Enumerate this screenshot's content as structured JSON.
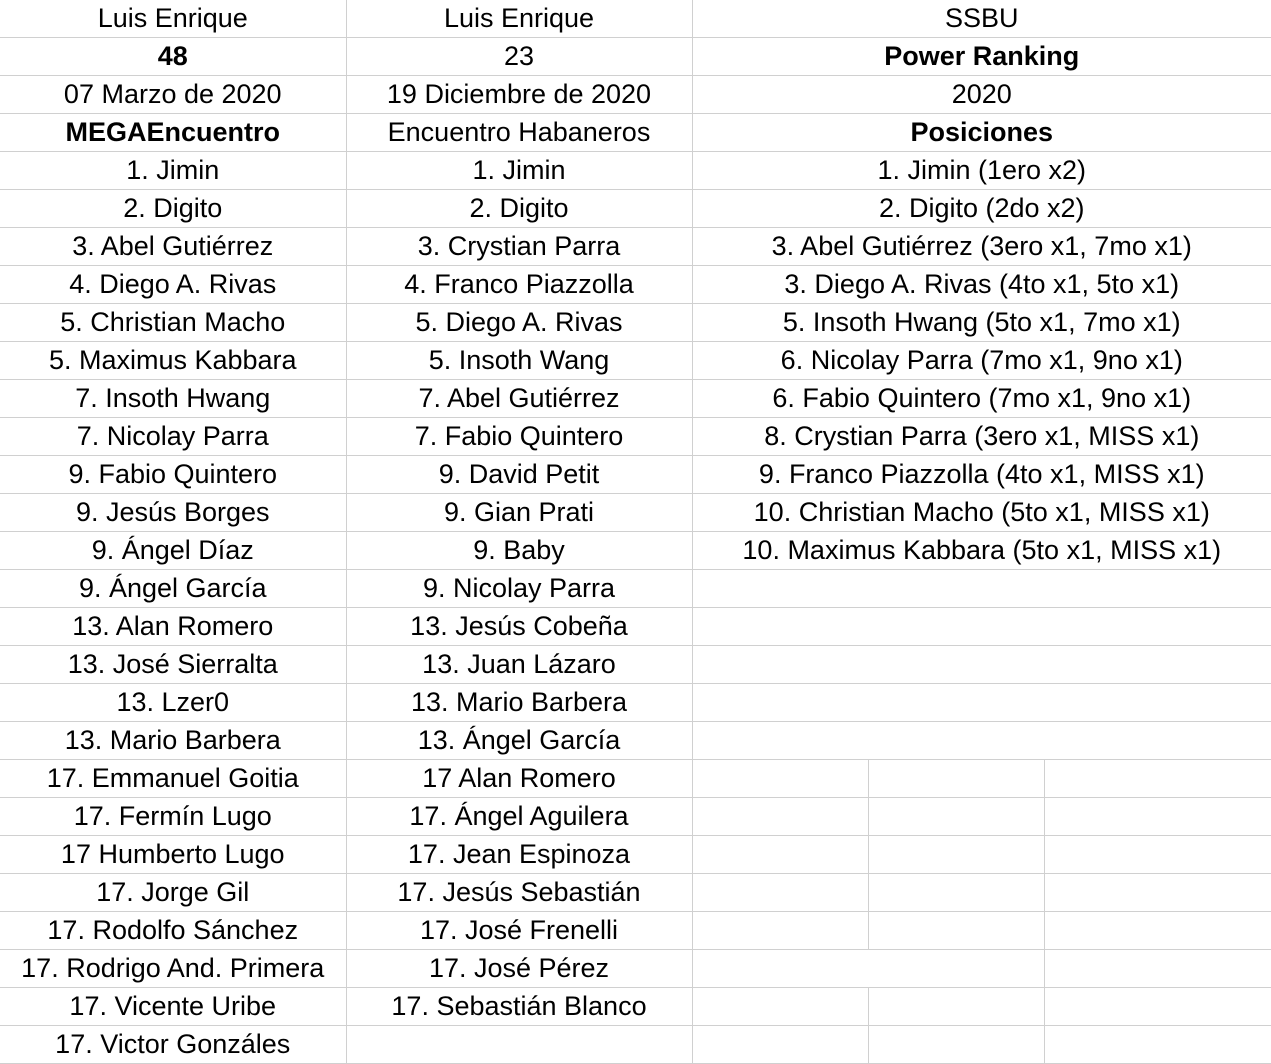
{
  "col1": {
    "header": [
      "Luis Enrique",
      "48",
      "07 Marzo de 2020",
      "MEGAEncuentro"
    ],
    "rows": [
      "1. Jimin",
      "2. Digito",
      "3. Abel Gutiérrez",
      "4. Diego A. Rivas",
      "5. Christian Macho",
      "5. Maximus Kabbara",
      "7. Insoth Hwang",
      "7. Nicolay Parra",
      "9. Fabio Quintero",
      "9. Jesús Borges",
      "9. Ángel Díaz",
      "9. Ángel García",
      "13. Alan Romero",
      "13. José Sierraltа",
      "13. Lzer0",
      "13. Mario Barbera",
      "17. Emmanuel Goitia",
      "17. Fermín Lugo",
      "17 Humberto Lugo",
      "17. Jorge Gil",
      "17. Rodolfo Sánchez",
      "17. Rodrigo And. Primera",
      "17. Vicente Uribe",
      "17. Victor Gonzáles"
    ]
  },
  "col2": {
    "header": [
      "Luis Enrique",
      "23",
      "19 Diciembre de 2020",
      "Encuentro Habaneros"
    ],
    "rows": [
      "1. Jimin",
      "2. Digito",
      "3. Crystian Parra",
      "4. Franco Piazzolla",
      "5. Diego A. Rivas",
      "5. Insoth Wang",
      "7. Abel Gutiérrez",
      "7. Fabio Quintero",
      "9. David Petit",
      "9. Gian Prati",
      "9. Baby",
      "9. Nicolay Parra",
      "13. Jesús Cobeña",
      "13. Juan Lázaro",
      "13. Mario Barbera",
      "13. Ángel García",
      "17 Alan Romero",
      "17. Ángel Aguilera",
      "17. Jean Espinoza",
      "17. Jesús Sebastián",
      "17. José Frenelli",
      "17. José Pérez",
      "17. Sebastián Blanco",
      ""
    ]
  },
  "col3": {
    "header": [
      "SSBU",
      "Power Ranking",
      "2020",
      "Posiciones"
    ],
    "rows": [
      "1. Jimin (1ero x2)",
      "2. Digito (2do x2)",
      "3. Abel Gutiérrez (3ero x1, 7mo x1)",
      "3. Diego A. Rivas (4to x1, 5to x1)",
      "5. Insoth Hwang (5to x1, 7mo x1)",
      "6. Nicolay Parra (7mo x1, 9no x1)",
      "6. Fabio Quintero (7mo x1, 9no x1)",
      "8. Crystian Parra (3ero x1, MISS x1)",
      "9. Franco Piazzolla (4to x1, MISS x1)",
      "10. Christian Macho (5to x1, MISS x1)",
      "10. Maximus Kabbara (5to x1, MISS x1)"
    ]
  }
}
